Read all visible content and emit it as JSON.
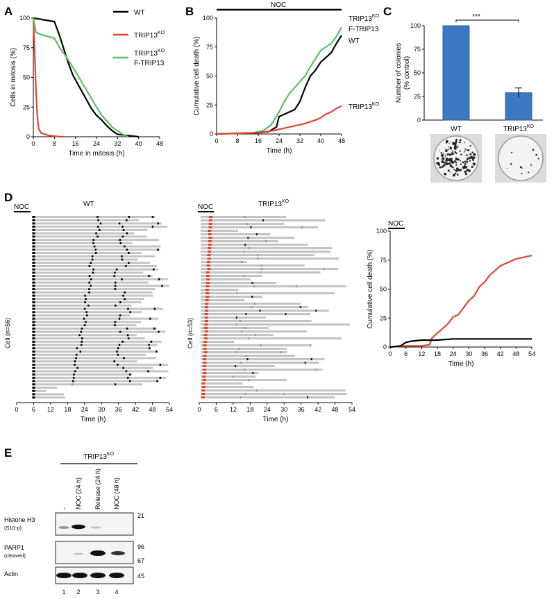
{
  "panels": {
    "A": {
      "label": "A"
    },
    "B": {
      "label": "B",
      "treatment": "NOC"
    },
    "C": {
      "label": "C",
      "significance": "***"
    },
    "D": {
      "label": "D",
      "treatment": "NOC",
      "wt_title": "WT",
      "ko_title": "TRIP13",
      "ko_sup": "KO",
      "wt_cell_label": "Cell (n=56)",
      "ko_cell_label": "Cell (n=53)",
      "time_label": "Time (h)"
    },
    "E": {
      "label": "E",
      "group_label": "TRIP13",
      "group_sup": "KO",
      "lanes": [
        "-",
        "NOC (24 h)",
        "Release (24 h)",
        "NOC (48 h)"
      ],
      "lane_numbers": [
        "1",
        "2",
        "3",
        "4"
      ],
      "blots": [
        {
          "name": "Histone H3",
          "sub": "(S10-p)",
          "marker": "21"
        },
        {
          "name": "PARP1",
          "sub": "(cleaved)",
          "marker": "96",
          "marker2": "67"
        },
        {
          "name": "Actin",
          "sub": "",
          "marker": "45"
        }
      ]
    }
  },
  "chart_data": [
    {
      "id": "A",
      "type": "line",
      "xlabel": "Time in mitosis (h)",
      "ylabel": "Cells in mitosis (%)",
      "xlim": [
        0,
        48
      ],
      "ylim": [
        0,
        100
      ],
      "xticks": [
        0,
        8,
        16,
        24,
        32,
        40,
        48
      ],
      "yticks": [
        0,
        25,
        50,
        75,
        100
      ],
      "series": [
        {
          "name": "WT",
          "color": "#000000",
          "x": [
            0,
            8,
            10,
            13,
            15,
            17,
            20,
            22,
            24,
            26,
            28,
            30,
            32,
            36,
            40
          ],
          "y": [
            100,
            97,
            85,
            64,
            52,
            44,
            32,
            24,
            18,
            14,
            9,
            5,
            2,
            1,
            0
          ]
        },
        {
          "name": "TRIP13",
          "sup": "KO",
          "color": "#e0452e",
          "x": [
            0,
            0.5,
            1,
            1.5,
            2,
            3,
            6,
            10,
            12
          ],
          "y": [
            100,
            72,
            40,
            18,
            7,
            3,
            1,
            0,
            0
          ]
        },
        {
          "name": "TRIP13",
          "sup": "KO",
          "name2": "F-TRIP13",
          "color": "#59c05d",
          "x": [
            0,
            1,
            3,
            8,
            10,
            12,
            16,
            20,
            24,
            26,
            28,
            30,
            32,
            34,
            36
          ],
          "y": [
            100,
            88,
            86,
            83,
            75,
            69,
            55,
            40,
            25,
            18,
            13,
            8,
            5,
            2,
            0
          ]
        }
      ]
    },
    {
      "id": "B",
      "type": "line",
      "xlabel": "Time (h)",
      "ylabel": "Cumulative cell death (%)",
      "xlim": [
        0,
        48
      ],
      "ylim": [
        0,
        100
      ],
      "xticks": [
        0,
        8,
        16,
        24,
        32,
        40,
        48
      ],
      "yticks": [
        0,
        25,
        50,
        75,
        100
      ],
      "series": [
        {
          "name": "TRIP13",
          "sup": "KO",
          "name2": "F-TRIP13",
          "color": "#59c05d",
          "x": [
            0,
            14,
            18,
            21,
            24,
            26,
            28,
            30,
            32,
            34,
            36,
            38,
            40,
            42,
            44,
            46,
            48
          ],
          "y": [
            0,
            1,
            3,
            8,
            19,
            28,
            35,
            40,
            45,
            50,
            58,
            65,
            72,
            75,
            78,
            84,
            92
          ]
        },
        {
          "name": "WT",
          "color": "#000000",
          "x": [
            0,
            16,
            20,
            23,
            24,
            26,
            28,
            30,
            32,
            34,
            36,
            38,
            40,
            42,
            44,
            46,
            48
          ],
          "y": [
            0,
            1,
            2,
            6,
            15,
            17,
            19,
            21,
            28,
            40,
            50,
            55,
            62,
            66,
            70,
            78,
            85
          ]
        },
        {
          "name": "TRIP13",
          "sup": "KO",
          "color": "#e0452e",
          "x": [
            0,
            16,
            22,
            26,
            30,
            34,
            38,
            40,
            42,
            44,
            46,
            48
          ],
          "y": [
            0,
            1,
            3,
            5,
            7,
            9,
            12,
            14,
            17,
            19,
            22,
            24
          ]
        }
      ]
    },
    {
      "id": "C",
      "type": "bar",
      "ylabel": "Number of colonies",
      "ylabel2": "(% control)",
      "ylim": [
        0,
        100
      ],
      "yticks": [
        0,
        25,
        50,
        75,
        100
      ],
      "categories": [
        "WT",
        "TRIP13"
      ],
      "category_sup": [
        "",
        "KO"
      ],
      "values": [
        100,
        29
      ],
      "errors": [
        0,
        5
      ],
      "color": "#3b78c2"
    },
    {
      "id": "D-right",
      "type": "line",
      "xlabel": "Time (h)",
      "ylabel": "Cumulative cell death  (%)",
      "xlim": [
        0,
        54
      ],
      "ylim": [
        0,
        100
      ],
      "xticks": [
        0,
        6,
        12,
        18,
        24,
        30,
        36,
        42,
        48,
        54
      ],
      "yticks": [
        0,
        25,
        50,
        75,
        100
      ],
      "series": [
        {
          "name": "TRIP13",
          "sup": "KO",
          "color": "#e0452e",
          "x": [
            0,
            6,
            12,
            15,
            16,
            18,
            20,
            22,
            24,
            26,
            28,
            30,
            32,
            34,
            36,
            38,
            40,
            42,
            44,
            46,
            48,
            50,
            52,
            54
          ],
          "y": [
            0,
            1,
            1,
            2,
            8,
            12,
            16,
            20,
            26,
            28,
            34,
            40,
            44,
            52,
            56,
            62,
            66,
            70,
            72,
            74,
            76,
            77,
            78,
            79
          ]
        },
        {
          "name": "WT",
          "color": "#000000",
          "x": [
            0,
            4,
            6,
            8,
            12,
            18,
            24,
            30,
            36,
            42,
            48,
            54
          ],
          "y": [
            0,
            1,
            4,
            5,
            6,
            6,
            7,
            7,
            7,
            7,
            7,
            7
          ]
        }
      ]
    },
    {
      "id": "D-wt",
      "type": "table",
      "xticks": [
        0,
        6,
        12,
        18,
        24,
        30,
        36,
        42,
        48,
        54
      ],
      "xlim": [
        0,
        54
      ],
      "n": 56,
      "note": "single-cell timelines: grey = interphase, black = mitosis, green = mitotic slippage"
    },
    {
      "id": "D-ko",
      "type": "table",
      "xticks": [
        0,
        6,
        12,
        18,
        24,
        30,
        36,
        42,
        48,
        54
      ],
      "xlim": [
        0,
        54
      ],
      "n": 53,
      "note": "single-cell timelines: grey = interphase, red = first mitosis, green/black = later events"
    }
  ]
}
